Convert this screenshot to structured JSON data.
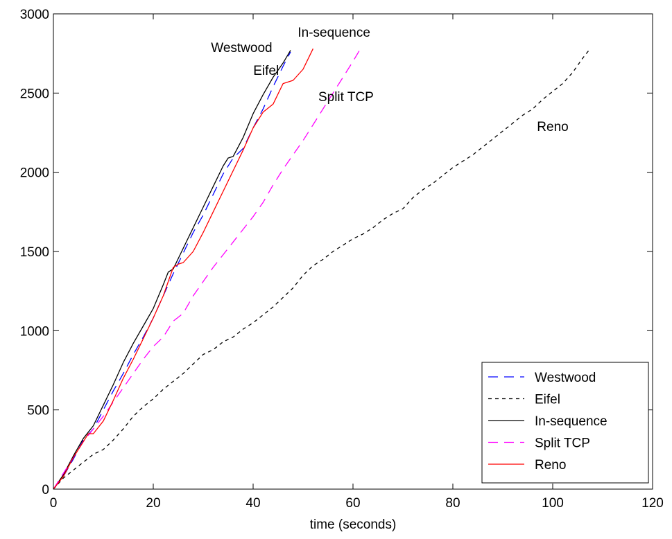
{
  "chart_data": {
    "type": "line",
    "title": "",
    "xlabel": "time (seconds)",
    "ylabel": "",
    "xlim": [
      0,
      120
    ],
    "ylim": [
      0,
      3000
    ],
    "grid": false,
    "legend_position": "bottom-right",
    "x_ticks": [
      "0",
      "20",
      "40",
      "60",
      "80",
      "100",
      "120"
    ],
    "y_ticks": [
      "0",
      "500",
      "1000",
      "1500",
      "2000",
      "2500",
      "3000"
    ],
    "annotations": [
      {
        "text": "Westwood",
        "x": 37.7,
        "y": 2760
      },
      {
        "text": "Eifel",
        "x": 42.6,
        "y": 2615
      },
      {
        "text": "In-sequence",
        "x": 56.2,
        "y": 2855
      },
      {
        "text": "Split TCP",
        "x": 58.6,
        "y": 2450
      },
      {
        "text": "Reno",
        "x": 100.0,
        "y": 2260
      }
    ],
    "series": [
      {
        "name": "Westwood",
        "color": "#0000ff",
        "dash": "14 9",
        "x": [
          0,
          2,
          4,
          6,
          8,
          10,
          12,
          14,
          16,
          18,
          20,
          22,
          24,
          26,
          28,
          30,
          32,
          34,
          36,
          38,
          40,
          42,
          44,
          46,
          47.5
        ],
        "y": [
          0,
          80,
          190,
          310,
          380,
          500,
          620,
          730,
          850,
          960,
          1080,
          1220,
          1360,
          1490,
          1620,
          1730,
          1860,
          1990,
          2090,
          2150,
          2280,
          2400,
          2540,
          2670,
          2760
        ]
      },
      {
        "name": "Eifel",
        "color": "#000000",
        "dash": "5 5",
        "x": [
          0,
          2,
          4,
          6,
          8,
          10,
          12,
          14,
          16,
          18,
          20,
          22,
          24,
          26,
          28,
          30,
          32,
          34,
          36,
          38,
          40,
          42,
          44,
          46,
          48,
          50,
          52,
          54,
          56,
          58,
          60,
          62,
          64,
          66,
          68,
          70,
          72,
          74,
          76,
          78,
          80,
          82,
          84,
          86,
          88,
          90,
          92,
          94,
          96,
          98,
          100,
          102,
          104,
          106,
          107.5
        ],
        "y": [
          0,
          70,
          120,
          170,
          220,
          250,
          310,
          380,
          460,
          520,
          570,
          630,
          680,
          730,
          790,
          850,
          880,
          930,
          960,
          1010,
          1050,
          1100,
          1150,
          1210,
          1270,
          1350,
          1410,
          1450,
          1500,
          1540,
          1580,
          1610,
          1650,
          1700,
          1740,
          1770,
          1840,
          1890,
          1930,
          1980,
          2030,
          2070,
          2110,
          2160,
          2210,
          2260,
          2310,
          2360,
          2400,
          2460,
          2510,
          2560,
          2630,
          2720,
          2780
        ]
      },
      {
        "name": "In-sequence",
        "color": "#000000",
        "dash": "",
        "x": [
          0,
          2,
          4,
          6,
          7,
          8,
          10,
          12,
          14,
          16,
          18,
          20,
          22,
          23,
          24,
          26,
          28,
          30,
          32,
          34,
          35,
          36,
          38,
          40,
          42,
          44,
          46,
          47.5
        ],
        "y": [
          0,
          90,
          210,
          320,
          360,
          400,
          530,
          660,
          800,
          920,
          1030,
          1140,
          1290,
          1370,
          1390,
          1520,
          1650,
          1780,
          1910,
          2040,
          2090,
          2100,
          2220,
          2370,
          2490,
          2600,
          2690,
          2770
        ]
      },
      {
        "name": "Split TCP",
        "color": "#ff00ff",
        "dash": "14 9",
        "x": [
          0,
          2,
          4,
          6,
          8,
          10,
          12,
          14,
          16,
          18,
          20,
          22,
          24,
          26,
          28,
          30,
          32,
          34,
          36,
          38,
          40,
          42,
          44,
          46,
          48,
          50,
          52,
          54,
          56,
          58,
          60,
          61.5
        ],
        "y": [
          0,
          100,
          200,
          300,
          380,
          460,
          550,
          640,
          730,
          820,
          900,
          960,
          1060,
          1110,
          1220,
          1310,
          1400,
          1480,
          1560,
          1640,
          1720,
          1810,
          1920,
          2020,
          2110,
          2200,
          2300,
          2400,
          2500,
          2600,
          2700,
          2780
        ]
      },
      {
        "name": "Reno",
        "color": "#ff0000",
        "dash": "",
        "x": [
          0,
          2,
          4,
          6,
          7,
          8,
          10,
          12,
          14,
          16,
          18,
          20,
          22,
          24,
          25,
          26,
          28,
          30,
          32,
          34,
          36,
          38,
          40,
          42,
          44,
          46,
          48,
          50,
          52
        ],
        "y": [
          0,
          80,
          200,
          300,
          350,
          350,
          430,
          560,
          700,
          820,
          950,
          1080,
          1220,
          1400,
          1420,
          1430,
          1500,
          1620,
          1750,
          1880,
          2010,
          2140,
          2280,
          2380,
          2430,
          2560,
          2580,
          2650,
          2780
        ]
      }
    ]
  }
}
